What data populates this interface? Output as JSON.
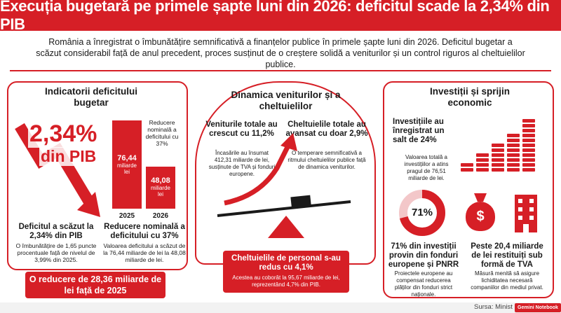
{
  "header": {
    "title": "Execuția bugetară pe primele șapte luni din 2026: deficitul scade la 2,34% din PIB"
  },
  "intro": {
    "text": "România a înregistrat o îmbunătățire semnificativă a finanțelor publice în primele șapte luni din 2026. Deficitul bugetar a scăzut considerabil față de anul precedent, proces susținut de o creștere solidă a veniturilor și un control riguros al cheltuielilor publice."
  },
  "left": {
    "title": "Indicatorii deficitului bugetar",
    "big_value": "2,34%",
    "big_unit": "din PIB",
    "reduction_note": "Reducere nominală a deficitului cu 37%",
    "bar_2025": {
      "value": "76,44",
      "unit": "miliarde lei",
      "year": "2025"
    },
    "bar_2026": {
      "value": "48,08",
      "unit": "miliarde lei",
      "year": "2026"
    },
    "deficit_heading": "Deficitul a scăzut la 2,34% din PIB",
    "deficit_text": "O îmbunătățire de 1,65 puncte procentuale față de nivelul de 3,99% din 2025.",
    "nominal_heading": "Reducere nominală a deficitului cu 37%",
    "nominal_text": "Valoarea deficitului a scăzut de la 76,44 miliarde de lei la 48,08 miliarde de lei.",
    "banner": "O reducere de 28,36 miliarde de lei față de 2025"
  },
  "center": {
    "title": "Dinamica veniturilor și a cheltuielilor",
    "rev_heading": "Veniturile totale au crescut cu 11,2%",
    "rev_text": "Încasările au însumat 412,31 miliarde de lei, susținute de TVA și fonduri europene.",
    "exp_heading": "Cheltuielile totale au avansat cu doar 2,9%",
    "exp_text": "O temperare semnificativă a ritmului cheltuielilor publice față de dinamica veniturilor.",
    "personnel_heading": "Cheltuielile de personal s-au redus cu 4,1%",
    "personnel_text": "Acestea au coborât la 95,67 miliarde de lei, reprezentând 4,7% din PIB."
  },
  "right": {
    "title": "Investiții și sprijin economic",
    "inv_heading": "Investițiile au înregistrat un salt de 24%",
    "inv_text": "Valoarea totală a investițiilor a atins pragul de 76,51 miliarde de lei.",
    "donut_label": "71%",
    "donut_share": 0.71,
    "eu_heading": "71% din investiții provin din fonduri europene și PNRR",
    "eu_text": "Proiectele europene au compensat reducerea plăților din fonduri strict naționale.",
    "vat_heading": "Peste 20,4 miliarde de lei restituiți sub formă de TVA",
    "vat_text": "Măsură menită să asigure lichiditatea necesară companiilor din mediul privat.",
    "dollar": "$"
  },
  "footer": {
    "source": "Sursa: Minist",
    "badge": "Gemini Notebook"
  },
  "colors": {
    "accent": "#d61f26"
  }
}
